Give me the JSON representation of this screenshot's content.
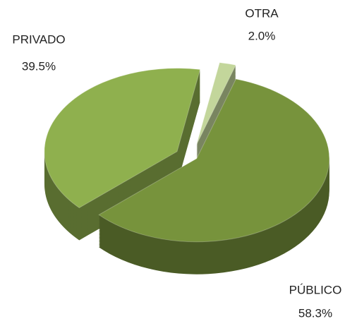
{
  "chart_data": {
    "type": "pie",
    "categories": [
      "OTRA",
      "PÚBLICO",
      "PRIVADO"
    ],
    "values": [
      2.0,
      58.3,
      39.5
    ],
    "value_labels": [
      "2.0%",
      "58.3%",
      "39.5%"
    ],
    "colors": [
      "#c3d69b",
      "#77933c",
      "#8fb04e"
    ]
  }
}
